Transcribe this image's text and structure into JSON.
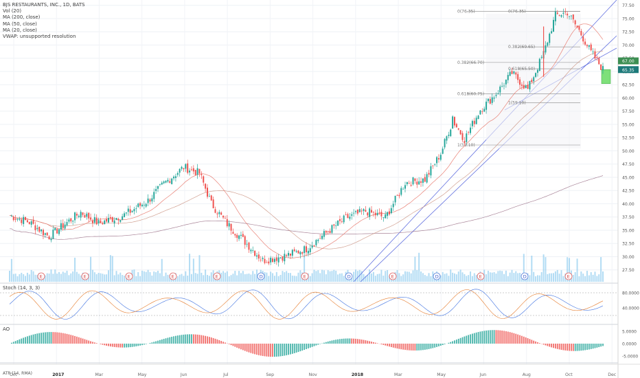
{
  "header": {
    "title": "BJS RESTAURANTS, INC., 1D, BATS",
    "indicators": [
      "Vol (20)",
      "MA (200, close)",
      "MA (50, close)",
      "MA (20, close)",
      "VWAP: unsupported resolution"
    ]
  },
  "panes": {
    "stoch": "Stoch (14, 3, 3)",
    "ao": "AO",
    "atr": "ATR (14, RMA)"
  },
  "colors": {
    "up": "#26a69a",
    "down": "#ef5350",
    "ma200": "#9a6f86",
    "ma50": "#c98f7e",
    "ma20": "#e56b5e",
    "channel": "#3c4ed8",
    "fib": "#888888",
    "target_box": "#7ee07a",
    "volume": "#7fc4ec",
    "last_price": "#3d8f53",
    "last_price2": "#1d7a7a"
  },
  "chart_data": [
    {
      "type": "candlestick",
      "title": "BJS RESTAURANTS, INC., 1D, BATS",
      "x_ticks": [
        "Oct",
        "2017",
        "Mar",
        "May",
        "Jun",
        "Jul",
        "Sep",
        "Nov",
        "2018",
        "Mar",
        "May",
        "Jun",
        "Aug",
        "Oct",
        "Dec"
      ],
      "y_ticks": [
        27.5,
        30.0,
        32.5,
        35.0,
        37.5,
        40.0,
        42.5,
        45.0,
        47.5,
        50.0,
        52.5,
        55.0,
        57.5,
        60.0,
        62.5,
        65.0,
        67.5,
        70.0,
        72.5,
        75.0,
        77.5
      ],
      "ylim": [
        25,
        78.5
      ],
      "price_path": [
        {
          "t": 0,
          "p": 37.8
        },
        {
          "t": 10,
          "p": 36.5
        },
        {
          "t": 20,
          "p": 33.8
        },
        {
          "t": 28,
          "p": 36.2
        },
        {
          "t": 36,
          "p": 38.4
        },
        {
          "t": 45,
          "p": 36.3
        },
        {
          "t": 58,
          "p": 37.9
        },
        {
          "t": 70,
          "p": 40.6
        },
        {
          "t": 78,
          "p": 43.8
        },
        {
          "t": 88,
          "p": 46.9
        },
        {
          "t": 96,
          "p": 45.8
        },
        {
          "t": 102,
          "p": 40.0
        },
        {
          "t": 110,
          "p": 36.2
        },
        {
          "t": 118,
          "p": 33.2
        },
        {
          "t": 128,
          "p": 29.3
        },
        {
          "t": 140,
          "p": 30.2
        },
        {
          "t": 150,
          "p": 31.5
        },
        {
          "t": 160,
          "p": 34.5
        },
        {
          "t": 170,
          "p": 37.3
        },
        {
          "t": 180,
          "p": 38.6
        },
        {
          "t": 190,
          "p": 37.4
        },
        {
          "t": 200,
          "p": 44.0
        },
        {
          "t": 210,
          "p": 44.6
        },
        {
          "t": 218,
          "p": 49.5
        },
        {
          "t": 224,
          "p": 55.8
        },
        {
          "t": 230,
          "p": 52.2
        },
        {
          "t": 238,
          "p": 57.8
        },
        {
          "t": 246,
          "p": 60.8
        },
        {
          "t": 254,
          "p": 64.7
        },
        {
          "t": 262,
          "p": 61.6
        },
        {
          "t": 270,
          "p": 68.4
        },
        {
          "t": 276,
          "p": 75.6
        },
        {
          "t": 282,
          "p": 76.2
        },
        {
          "t": 288,
          "p": 72.7
        },
        {
          "t": 294,
          "p": 68.6
        },
        {
          "t": 300,
          "p": 65.4
        }
      ],
      "moving_averages": [
        "MA (200, close)",
        "MA (50, close)",
        "MA (20, close)"
      ],
      "fib_levels": [
        {
          "label": "0(76.35)",
          "value": 76.35
        },
        {
          "label": "0.382(69.65)",
          "value": 69.65
        },
        {
          "label": "0.618(65.50)",
          "value": 65.5
        },
        {
          "label": "1(59.10)",
          "value": 59.1
        },
        {
          "label": "0(76.35)",
          "value": 76.35
        },
        {
          "label": "0.382(66.70)",
          "value": 66.7
        },
        {
          "label": "0.618(60.75)",
          "value": 60.75
        },
        {
          "label": "1(51.10)",
          "value": 51.1
        }
      ],
      "last_prices": [
        "67.00",
        "65.35"
      ],
      "events": [
        "E",
        "E",
        "E",
        "E",
        "E",
        "D",
        "E",
        "D",
        "E",
        "D",
        "E",
        "D",
        "E"
      ]
    },
    {
      "type": "line",
      "title": "Stoch (14, 3, 3)",
      "y_ticks": [
        "80.0000",
        "40.0000"
      ],
      "ylim": [
        0,
        100
      ],
      "bands": [
        80,
        20
      ]
    },
    {
      "type": "bar",
      "title": "AO",
      "y_ticks": [
        "5.0000",
        "0.0000",
        "-5.0000"
      ],
      "ylim": [
        -7,
        7
      ]
    }
  ]
}
